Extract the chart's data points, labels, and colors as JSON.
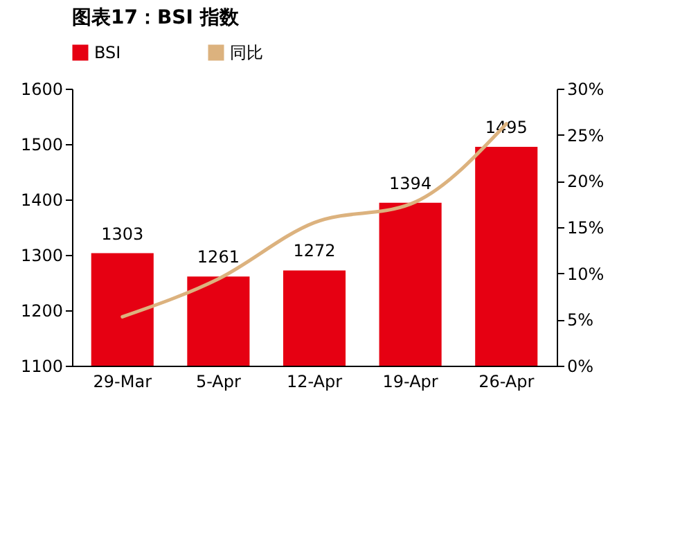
{
  "chart_data": {
    "type": "bar",
    "title": "图表17：BSI 指数",
    "categories": [
      "29-Mar",
      "5-Apr",
      "12-Apr",
      "19-Apr",
      "26-Apr"
    ],
    "series": [
      {
        "name": "BSI",
        "color": "#e60012",
        "values": [
          1303,
          1261,
          1272,
          1394,
          1495
        ],
        "value_labels": [
          "1303",
          "1261",
          "1272",
          "1394",
          "1495"
        ]
      },
      {
        "name": "同比",
        "type": "line",
        "axis": "y2",
        "color": "#dcb27e",
        "values": [
          5.3,
          9.4,
          15.5,
          17.5,
          26.2
        ]
      }
    ],
    "ylim": [
      1100,
      1600
    ],
    "yticks": [
      1100,
      1200,
      1300,
      1400,
      1500,
      1600
    ],
    "y2lim": [
      0,
      30
    ],
    "y2ticks": [
      {
        "value": 0,
        "label": "0%"
      },
      {
        "value": 5,
        "label": "5%"
      },
      {
        "value": 10,
        "label": "10%"
      },
      {
        "value": 15,
        "label": "15%"
      },
      {
        "value": 20,
        "label": "20%"
      },
      {
        "value": 25,
        "label": "25%"
      },
      {
        "value": 30,
        "label": "30%"
      }
    ],
    "grid": false,
    "legend": "top",
    "marker": "none",
    "line_style": "solid"
  }
}
